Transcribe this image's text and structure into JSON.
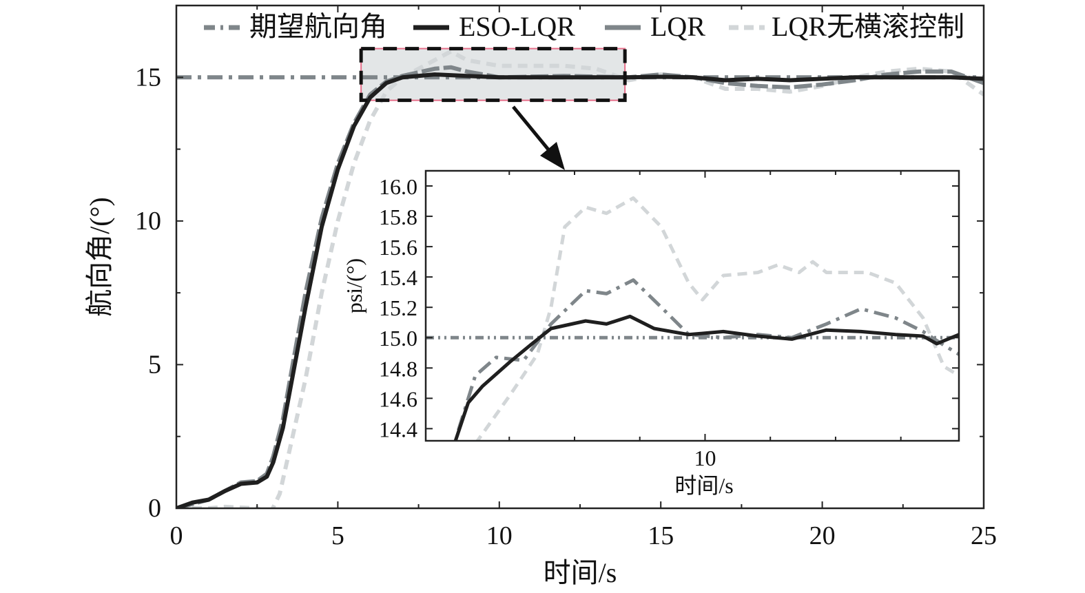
{
  "chart_data": [
    {
      "type": "line",
      "title": "",
      "xlabel": "时间/s",
      "ylabel": "航向角/(°)",
      "xlim": [
        0,
        25
      ],
      "ylim": [
        0,
        17.5
      ],
      "xticks": [
        0,
        5,
        10,
        15,
        20,
        25
      ],
      "yticks": [
        0,
        5,
        10,
        15
      ],
      "legend_position": "top",
      "legend": [
        "期望航向角",
        "ESO-LQR",
        "LQR",
        "LQR无横滚控制"
      ],
      "zoom_box": {
        "x": [
          5.72,
          13.89
        ],
        "y": [
          14.2,
          16.0
        ]
      },
      "series": [
        {
          "name": "期望航向角",
          "color": "#7f868a",
          "style": "dashdot",
          "x": [
            0,
            25
          ],
          "y": [
            15,
            15
          ]
        },
        {
          "name": "ESO-LQR",
          "color": "#1f1f1f",
          "style": "solid",
          "x": [
            0,
            0.5,
            1,
            1.5,
            2,
            2.5,
            2.8,
            3,
            3.3,
            3.6,
            4,
            4.5,
            5,
            5.5,
            6,
            6.5,
            7,
            8,
            9,
            10,
            12,
            14,
            15,
            16,
            17,
            18,
            19,
            20,
            21,
            22,
            23,
            24,
            25
          ],
          "y": [
            0,
            0.2,
            0.3,
            0.6,
            0.85,
            0.9,
            1.1,
            1.6,
            2.8,
            4.6,
            7,
            9.8,
            11.8,
            13.3,
            14.3,
            14.8,
            15.0,
            15.1,
            15.05,
            15.0,
            15.0,
            15.0,
            15.02,
            15.0,
            14.9,
            14.95,
            14.9,
            14.95,
            15.0,
            15.0,
            15.0,
            15.0,
            14.95
          ]
        },
        {
          "name": "LQR",
          "color": "#7f868a",
          "style": "longdash",
          "x": [
            0,
            0.5,
            1,
            1.5,
            2,
            2.5,
            2.8,
            3,
            3.3,
            3.6,
            4,
            4.5,
            5,
            5.5,
            6,
            6.5,
            7,
            8,
            8.5,
            9,
            10,
            12,
            14,
            15,
            16,
            17,
            18,
            19,
            20,
            21,
            22,
            23,
            24,
            25
          ],
          "y": [
            0,
            0.15,
            0.3,
            0.6,
            0.9,
            0.95,
            1.2,
            1.8,
            3.1,
            5.0,
            7.5,
            10.1,
            12.0,
            13.4,
            14.4,
            14.85,
            15.05,
            15.3,
            15.35,
            15.2,
            15.0,
            15.05,
            15.0,
            15.1,
            15.0,
            14.8,
            14.7,
            14.65,
            14.75,
            14.9,
            15.1,
            15.2,
            15.2,
            14.8
          ]
        },
        {
          "name": "LQR无横滚控制",
          "color": "#d2d6d8",
          "style": "dashed",
          "x": [
            0,
            1,
            1.5,
            2.5,
            2.9,
            3.2,
            3.5,
            4,
            4.5,
            5,
            5.5,
            6,
            6.5,
            7,
            8,
            8.5,
            9,
            10,
            11,
            12,
            13,
            14,
            15,
            16,
            17,
            18,
            19,
            20,
            21,
            22,
            23,
            24,
            25
          ],
          "y": [
            0,
            0,
            0.05,
            0,
            -0.2,
            0.5,
            2,
            4.5,
            7.5,
            10,
            12,
            13.5,
            14.5,
            15.0,
            15.6,
            15.9,
            15.6,
            15.4,
            15.4,
            15.4,
            15.3,
            14.9,
            15.1,
            15.0,
            14.6,
            14.6,
            14.5,
            14.7,
            15.0,
            15.2,
            15.3,
            15.2,
            14.4
          ]
        }
      ]
    },
    {
      "type": "line",
      "title": "",
      "xlabel": "时间/s",
      "ylabel": "psi/(°)",
      "xlim": [
        5.72,
        13.89
      ],
      "ylim": [
        14.32,
        16.1
      ],
      "xticks": [
        10
      ],
      "yticks": [
        "14.4",
        "14.6",
        "14.8",
        "15.0",
        "15.2",
        "15.4",
        "15.6",
        "15.8",
        "16.0"
      ],
      "series": [
        {
          "name": "期望航向角",
          "color": "#7f868a",
          "style": "dashdotdot",
          "x": [
            5.72,
            13.89
          ],
          "y": [
            15,
            15
          ]
        },
        {
          "name": "ESO-LQR",
          "color": "#1f1f1f",
          "style": "solid",
          "x": [
            6.16,
            6.37,
            6.59,
            7.01,
            7.32,
            7.64,
            8.17,
            8.49,
            8.85,
            9.22,
            9.75,
            10.28,
            10.81,
            11.33,
            11.86,
            12.39,
            12.92,
            13.34,
            13.55,
            13.89
          ],
          "y": [
            14.3,
            14.57,
            14.68,
            14.84,
            14.95,
            15.06,
            15.11,
            15.09,
            15.14,
            15.06,
            15.02,
            15.04,
            15.01,
            14.99,
            15.05,
            15.04,
            15.02,
            15.01,
            14.96,
            15.02
          ]
        },
        {
          "name": "LQR",
          "color": "#7f868a",
          "style": "dashdot",
          "x": [
            6.22,
            6.48,
            6.8,
            7.22,
            7.64,
            8.17,
            8.49,
            8.9,
            9.33,
            9.75,
            10.28,
            10.81,
            11.33,
            11.86,
            12.39,
            12.92,
            13.34,
            13.66,
            13.89
          ],
          "y": [
            14.39,
            14.75,
            14.87,
            14.85,
            15.09,
            15.31,
            15.29,
            15.38,
            15.2,
            15.02,
            15.0,
            15.02,
            15.0,
            15.09,
            15.19,
            15.13,
            15.04,
            14.95,
            14.89
          ]
        },
        {
          "name": "LQR无横滚控制",
          "color": "#d2d6d8",
          "style": "dashed",
          "x": [
            6.48,
            7.01,
            7.43,
            7.64,
            7.85,
            8.17,
            8.49,
            8.9,
            9.33,
            9.75,
            9.96,
            10.28,
            10.81,
            11.12,
            11.44,
            11.65,
            11.86,
            12.49,
            12.92,
            13.34,
            13.66,
            13.89
          ],
          "y": [
            14.3,
            14.62,
            14.89,
            15.2,
            15.73,
            15.86,
            15.82,
            15.92,
            15.73,
            15.36,
            15.25,
            15.41,
            15.43,
            15.48,
            15.43,
            15.5,
            15.43,
            15.43,
            15.36,
            15.13,
            14.81,
            14.75
          ]
        }
      ]
    }
  ]
}
